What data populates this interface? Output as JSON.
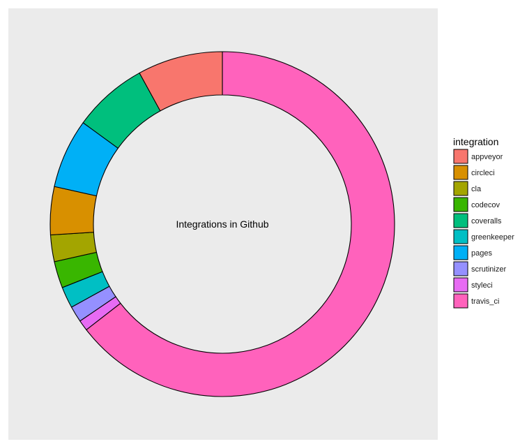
{
  "chart_data": {
    "type": "pie",
    "variant": "donut",
    "title": "Integrations in Github",
    "legend": {
      "title": "integration",
      "placement": "right"
    },
    "categories": [
      "appveyor",
      "circleci",
      "cla",
      "codecov",
      "coveralls",
      "greenkeeper",
      "pages",
      "scrutinizer",
      "styleci",
      "travis_ci"
    ],
    "values": [
      8.0,
      4.5,
      2.5,
      2.5,
      7.0,
      2.0,
      6.5,
      1.5,
      1.0,
      64.5
    ],
    "colors": [
      "#F8766D",
      "#D89000",
      "#A3A500",
      "#39B600",
      "#00BF7D",
      "#00BFC4",
      "#00B0F6",
      "#9590FF",
      "#E76BF3",
      "#FF62BC"
    ],
    "draw_order": [
      "travis_ci",
      "styleci",
      "scrutinizer",
      "greenkeeper",
      "codecov",
      "cla",
      "circleci",
      "pages",
      "coveralls",
      "appveyor"
    ],
    "panel_background": "#EBEBEB",
    "outline_color": "#000000"
  }
}
